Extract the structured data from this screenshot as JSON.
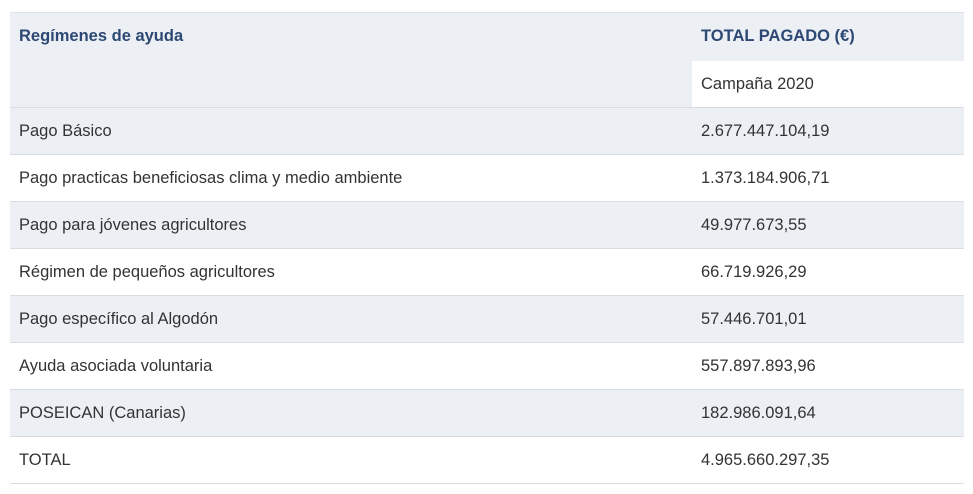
{
  "table": {
    "header": {
      "regimes_label": "Regímenes de ayuda",
      "total_label": "TOTAL PAGADO (€)",
      "campaign_label": "Campaña 2020"
    },
    "rows": [
      {
        "regime": "Pago Básico",
        "amount": "2.677.447.104,19"
      },
      {
        "regime": "Pago practicas beneficiosas clima y medio ambiente",
        "amount": "1.373.184.906,71"
      },
      {
        "regime": "Pago para jóvenes agricultores",
        "amount": "49.977.673,55"
      },
      {
        "regime": "Régimen de pequeños agricultores",
        "amount": "66.719.926,29"
      },
      {
        "regime": "Pago específico al Algodón",
        "amount": "57.446.701,01"
      },
      {
        "regime": "Ayuda asociada voluntaria",
        "amount": "557.897.893,96"
      },
      {
        "regime": "POSEICAN (Canarias)",
        "amount": "182.986.091,64"
      },
      {
        "regime": "TOTAL",
        "amount": "4.965.660.297,35"
      }
    ]
  }
}
